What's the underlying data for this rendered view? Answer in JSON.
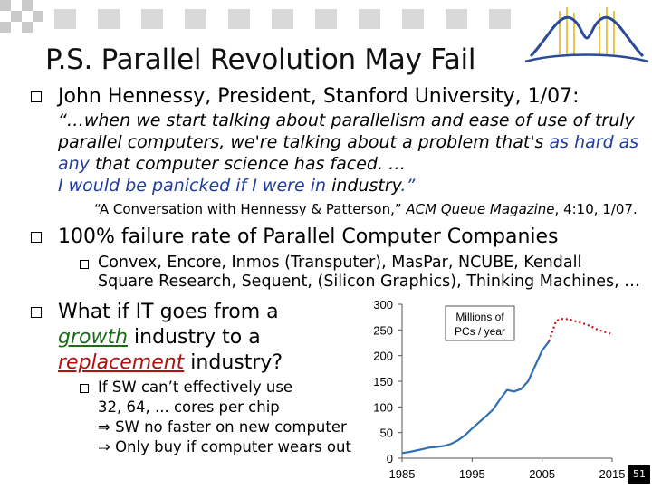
{
  "title": "P.S. Parallel Revolution May Fail",
  "b1": "John Hennessy, President, Stanford University, 1/07:",
  "q1": "“…when we start talking about parallelism and ease of use of truly",
  "q2a": "parallel computers, we're talking about a problem that's ",
  "q2b": "as hard as",
  "q3a": "any",
  "q3b": " that computer science has faced. …",
  "q4a": "I would be panicked if I were in ",
  "q4b": "industry",
  "q4c": ".”",
  "cite1": "“A Conversation with Hennessy & Patterson,” ",
  "cite2": "ACM Queue Magazine",
  "cite3": ", 4:10, 1/07.",
  "b2": "100% failure rate of Parallel Computer Companies",
  "s1a": "Convex, Encore, Inmos (Transputer), MasPar, NCUBE, Kendall",
  "s1b": "Square Research, Sequent, (Silicon Graphics), Thinking Machines, …",
  "b3a": "What if IT goes from a",
  "b3b1": "growth",
  "b3b2": " industry to a",
  "b3c1": "replacement",
  "b3c2": " industry?",
  "s2a": "If SW can’t effectively use",
  "s2b": "32, 64, ... cores per chip",
  "s2c": "⇒ SW no faster on new computer",
  "s2d": "⇒ Only buy if computer wears out",
  "page": "51",
  "colors": {
    "blue": "#1f3d9e",
    "green": "#1b6b17",
    "red": "#b01010",
    "line": "#2f6fb5",
    "dotted": "#c0141a"
  },
  "chart_data": {
    "type": "line",
    "title": "Millions of PCs / year",
    "legend": "Millions of PCs / year",
    "xlim": [
      1985,
      2015
    ],
    "ylim": [
      0,
      300
    ],
    "xticks": [
      "1985",
      "1995",
      "2005",
      "2015"
    ],
    "yticks": [
      "0",
      "50",
      "100",
      "150",
      "200",
      "250",
      "300"
    ],
    "series": [
      {
        "style": "solid",
        "x": [
          1985,
          1986,
          1987,
          1988,
          1989,
          1990,
          1991,
          1992,
          1993,
          1994,
          1995,
          1996,
          1997,
          1998,
          1999,
          2000,
          2001,
          2002,
          2003,
          2004,
          2005,
          2006
        ],
        "y": [
          10,
          12,
          15,
          18,
          21,
          22,
          24,
          28,
          35,
          45,
          58,
          70,
          82,
          95,
          115,
          133,
          130,
          135,
          150,
          180,
          210,
          228
        ]
      },
      {
        "style": "dotted",
        "x": [
          2006,
          2007,
          2008,
          2009,
          2010,
          2011,
          2012,
          2013,
          2014,
          2015
        ],
        "y": [
          228,
          268,
          272,
          270,
          266,
          262,
          257,
          250,
          246,
          242
        ]
      }
    ]
  }
}
